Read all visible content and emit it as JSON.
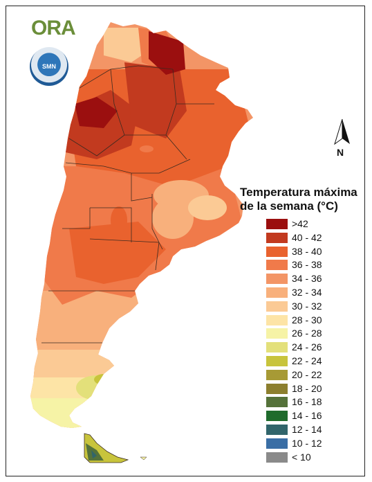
{
  "header": {
    "logo_text": "ORA",
    "seal_text": "SMN"
  },
  "north_arrow": {
    "label": "N",
    "icon": "north-arrow-icon"
  },
  "legend": {
    "title_line1": "Temperatura máxima",
    "title_line2": "de la semana (°C)",
    "items": [
      {
        "label": ">42",
        "color": "#9b0f0f"
      },
      {
        "label": "40 - 42",
        "color": "#c23a1f"
      },
      {
        "label": "38 - 40",
        "color": "#e9622e"
      },
      {
        "label": "36 - 38",
        "color": "#f07a4a"
      },
      {
        "label": "34 - 36",
        "color": "#f39566"
      },
      {
        "label": "32 - 34",
        "color": "#f8b07c"
      },
      {
        "label": "30 - 32",
        "color": "#fbca95"
      },
      {
        "label": "28 - 30",
        "color": "#fde4a6"
      },
      {
        "label": "26 - 28",
        "color": "#f6f3a6"
      },
      {
        "label": "24 - 26",
        "color": "#e3e07a"
      },
      {
        "label": "22 - 24",
        "color": "#c8c43c"
      },
      {
        "label": "20 - 22",
        "color": "#a79a35"
      },
      {
        "label": "18 - 20",
        "color": "#8c7f2e"
      },
      {
        "label": "16 - 18",
        "color": "#55723a"
      },
      {
        "label": "14 - 16",
        "color": "#1f6b2c"
      },
      {
        "label": "12 - 14",
        "color": "#31656b"
      },
      {
        "label": "10 - 12",
        "color": "#3a6ea5"
      },
      {
        "label": "< 10",
        "color": "#8a8a8a"
      }
    ]
  }
}
